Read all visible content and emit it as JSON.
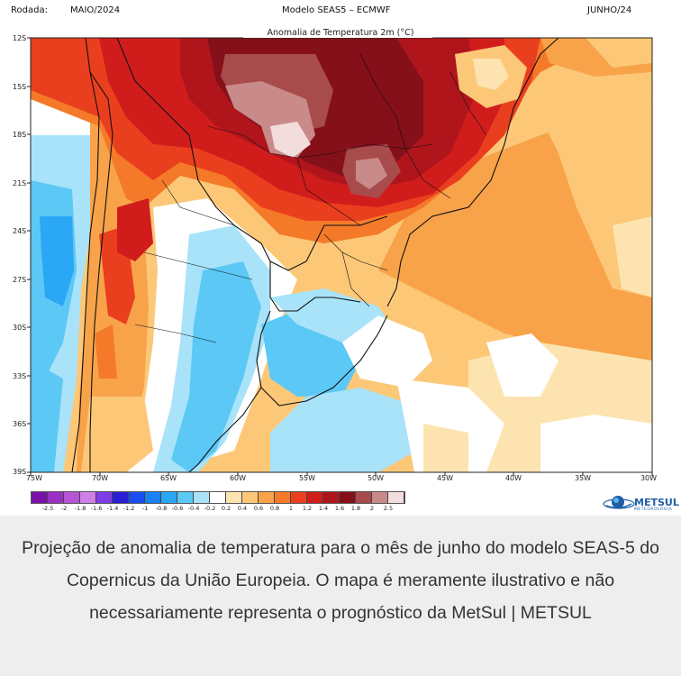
{
  "header": {
    "run_label": "Rodada:",
    "run_date": "MAIO/2024",
    "model": "Modelo SEAS5 – ECMWF",
    "target_month": "JUNHO/24",
    "map_title": "Anomalia de Temperatura 2m (°C)"
  },
  "axes": {
    "lat_ticks": [
      "12S",
      "15S",
      "18S",
      "21S",
      "24S",
      "27S",
      "30S",
      "33S",
      "36S",
      "39S"
    ],
    "lon_ticks": [
      "75W",
      "70W",
      "65W",
      "60W",
      "55W",
      "50W",
      "45W",
      "40W",
      "35W",
      "30W"
    ]
  },
  "colorbar": {
    "labels": [
      "-2.5",
      "-2",
      "-1.8",
      "-1.6",
      "-1.4",
      "-1.2",
      "-1",
      "-0.8",
      "-0.6",
      "-0.4",
      "-0.2",
      "0.2",
      "0.4",
      "0.6",
      "0.8",
      "1",
      "1.2",
      "1.4",
      "1.6",
      "1.8",
      "2",
      "2.5"
    ],
    "colors": [
      "#7a10a8",
      "#9b2fc4",
      "#b552d6",
      "#cf7fe6",
      "#7d3ce6",
      "#2a1fd6",
      "#1a4ef0",
      "#1b80f0",
      "#2aa8f5",
      "#5cc8f5",
      "#a9e3fa",
      "#ffffff",
      "#fde3b0",
      "#fcc878",
      "#f8a34a",
      "#f47a2a",
      "#ea3f1e",
      "#d11c1c",
      "#b0151c",
      "#85101a",
      "#a84b4b",
      "#c98a8a",
      "#f3dcdc"
    ]
  },
  "logo": {
    "name": "METSUL",
    "sub": "METEOROLOGIA"
  },
  "caption": "Projeção de anomalia de temperatura para o mês de junho do modelo SEAS-5 do Copernicus da União Europeia. O mapa é meramente ilustrativo e não necessariamente representa o prognóstico da MetSul | METSUL"
}
